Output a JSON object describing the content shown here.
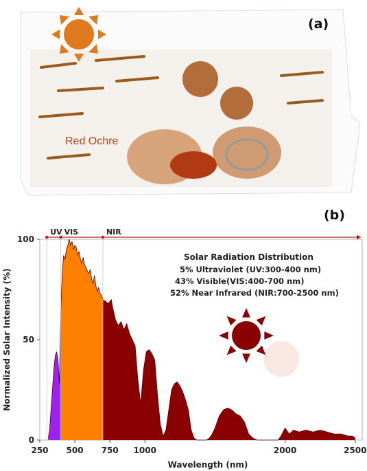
{
  "panel_a": {
    "label": "(a)",
    "caption": "Red Ochre",
    "icon": "sun-icon",
    "sun_color": "#e07a1e"
  },
  "panel_b": {
    "label": "(b)",
    "icon": "sun-icon",
    "sun_color": "#8b0000"
  },
  "chart_data": {
    "type": "area",
    "title": "",
    "xlabel": "Wavelength (nm)",
    "ylabel": "Normalized Solar Intensity (%)",
    "xlim": [
      250,
      2550
    ],
    "ylim": [
      0,
      100
    ],
    "xticks": [
      250,
      500,
      750,
      1000,
      2000,
      2500
    ],
    "yticks": [
      0,
      50,
      100
    ],
    "grid": false,
    "bands": [
      {
        "name": "UV",
        "range": [
          300,
          400
        ],
        "color": "#a020f0"
      },
      {
        "name": "VIS",
        "range": [
          400,
          700
        ],
        "color": "#ff8000"
      },
      {
        "name": "NIR",
        "range": [
          700,
          2500
        ],
        "color": "#8b0000"
      }
    ],
    "annotation": {
      "title": "Solar Radiation Distribution",
      "lines": [
        "5% Ultraviolet (UV:300-400 nm)",
        "43% Visible(VIS:400-700 nm)",
        "52% Near Infrared (NIR:700-2500 nm)"
      ]
    },
    "series": [
      {
        "x": [
          310,
          320,
          330,
          340,
          350,
          360,
          370,
          380,
          390,
          400,
          410,
          420,
          430,
          440,
          450,
          460,
          470,
          480,
          490,
          500,
          510,
          520,
          530,
          540,
          550,
          560,
          570,
          580,
          590,
          600,
          610,
          620,
          630,
          640,
          650,
          660,
          670,
          680,
          690,
          700,
          720,
          740,
          760,
          770,
          790,
          810,
          830,
          850,
          870,
          890,
          910,
          930,
          950,
          970,
          990,
          1010,
          1030,
          1050,
          1070,
          1090,
          1110,
          1130,
          1150,
          1170,
          1190,
          1210,
          1230,
          1250,
          1270,
          1290,
          1310,
          1330,
          1350,
          1370,
          1400,
          1420,
          1440,
          1460,
          1480,
          1500,
          1530,
          1560,
          1590,
          1620,
          1650,
          1680,
          1710,
          1740,
          1770,
          1800,
          1850,
          1900,
          1950,
          1970,
          2000,
          2030,
          2060,
          2100,
          2150,
          2200,
          2250,
          2300,
          2350,
          2400,
          2450,
          2480,
          2500
        ],
        "y": [
          1,
          5,
          15,
          25,
          35,
          42,
          44,
          40,
          28,
          65,
          83,
          92,
          90,
          95,
          97,
          100,
          97,
          99,
          95,
          97,
          96,
          92,
          94,
          90,
          88,
          91,
          87,
          86,
          84,
          83,
          85,
          80,
          78,
          82,
          77,
          74,
          76,
          73,
          72,
          70,
          69,
          68,
          70,
          66,
          60,
          57,
          59,
          55,
          58,
          53,
          50,
          47,
          30,
          18,
          35,
          44,
          45,
          43,
          40,
          22,
          8,
          2,
          5,
          15,
          25,
          28,
          29,
          27,
          24,
          20,
          15,
          5,
          1,
          0,
          0,
          0,
          0,
          1,
          3,
          6,
          12,
          15,
          16,
          15,
          13,
          12,
          9,
          3,
          1,
          0,
          0,
          0,
          0,
          2,
          6,
          3,
          5,
          4,
          5,
          4,
          5,
          4,
          3,
          3,
          2,
          2,
          1
        ]
      }
    ]
  }
}
